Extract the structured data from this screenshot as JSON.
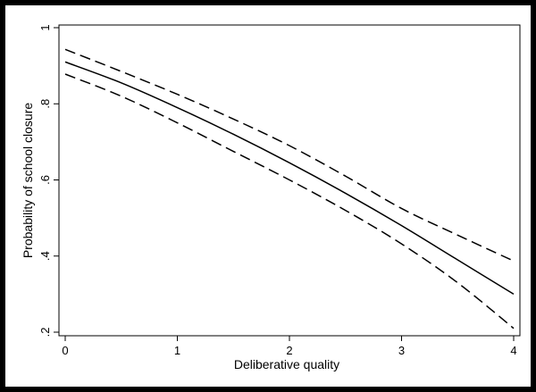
{
  "chart_data": {
    "type": "line",
    "xlabel": "Deliberative quality",
    "ylabel": "Probability of school closure",
    "xlim": [
      0,
      4
    ],
    "ylim": [
      0.2,
      1.0
    ],
    "x_ticks": [
      {
        "value": 0,
        "label": "0"
      },
      {
        "value": 1,
        "label": "1"
      },
      {
        "value": 2,
        "label": "2"
      },
      {
        "value": 3,
        "label": "3"
      },
      {
        "value": 4,
        "label": "4"
      }
    ],
    "y_ticks": [
      {
        "value": 0.2,
        "label": ".2"
      },
      {
        "value": 0.4,
        "label": ".4"
      },
      {
        "value": 0.6,
        "label": ".6"
      },
      {
        "value": 0.8,
        "label": ".8"
      },
      {
        "value": 1.0,
        "label": "1"
      }
    ],
    "grid": false,
    "legend": "none",
    "series": [
      {
        "style": "solid",
        "color": "#000000",
        "x": [
          0,
          0.5,
          1,
          1.5,
          2,
          2.5,
          3,
          3.5,
          4
        ],
        "y": [
          0.91,
          0.855,
          0.79,
          0.72,
          0.645,
          0.565,
          0.48,
          0.39,
          0.3
        ]
      },
      {
        "style": "dashed",
        "color": "#000000",
        "x": [
          0,
          0.5,
          1,
          1.5,
          2,
          2.5,
          3,
          3.5,
          4
        ],
        "y": [
          0.943,
          0.885,
          0.825,
          0.76,
          0.69,
          0.61,
          0.525,
          0.455,
          0.387
        ]
      },
      {
        "style": "dashed",
        "color": "#000000",
        "x": [
          0,
          0.5,
          1,
          1.5,
          2,
          2.5,
          3,
          3.5,
          4
        ],
        "y": [
          0.878,
          0.82,
          0.75,
          0.675,
          0.6,
          0.52,
          0.432,
          0.33,
          0.21
        ]
      }
    ]
  }
}
